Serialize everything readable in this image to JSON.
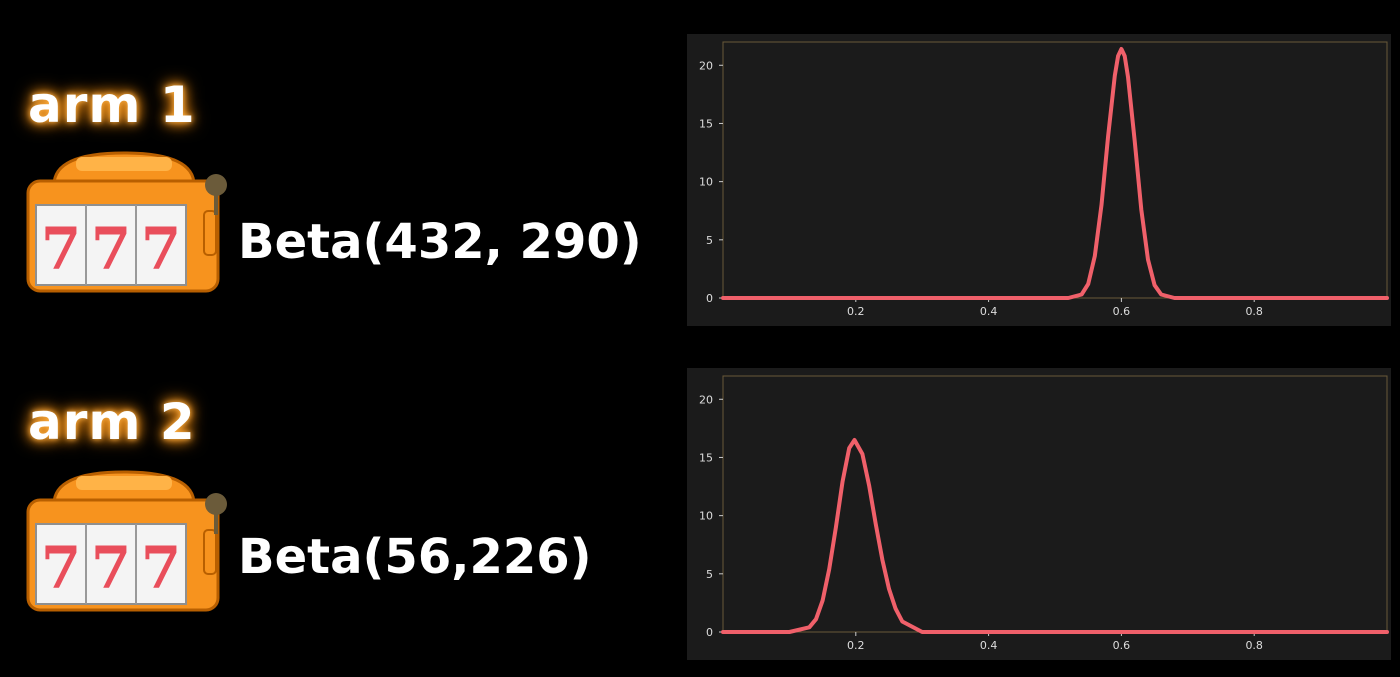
{
  "arms": [
    {
      "title": "arm 1",
      "label": "Beta(432, 290)",
      "icon": "slot-machine-icon"
    },
    {
      "title": "arm 2",
      "label": "Beta(56,226)",
      "icon": "slot-machine-icon"
    }
  ],
  "colors": {
    "background": "#000000",
    "plot_background": "#1b1b1b",
    "curve": "#f0606a",
    "glow": "#ff9a1f",
    "slot_body": "#f7931e",
    "slot_seven": "#e94e5b"
  },
  "chart_data": [
    {
      "type": "line",
      "title": "",
      "xlabel": "",
      "ylabel": "",
      "xlim": [
        0,
        1
      ],
      "ylim": [
        0,
        22
      ],
      "x_ticks": [
        0.2,
        0.4,
        0.6,
        0.8
      ],
      "x_tick_labels": [
        "0.2",
        "0.4",
        "0.6",
        "0.8"
      ],
      "y_ticks": [
        0,
        5,
        10,
        15,
        20
      ],
      "y_tick_labels": [
        "0",
        "5",
        "10",
        "15",
        "20"
      ],
      "grid": false,
      "series": [
        {
          "x": [
            0.0,
            0.52,
            0.54,
            0.55,
            0.56,
            0.57,
            0.58,
            0.59,
            0.595,
            0.6,
            0.605,
            0.61,
            0.62,
            0.63,
            0.64,
            0.65,
            0.66,
            0.68,
            1.0
          ],
          "y": [
            0,
            0,
            0.3,
            1.2,
            3.6,
            8.0,
            13.9,
            19.1,
            20.8,
            21.4,
            20.8,
            19.0,
            13.5,
            7.6,
            3.3,
            1.1,
            0.3,
            0,
            0
          ]
        }
      ]
    },
    {
      "type": "line",
      "title": "",
      "xlabel": "",
      "ylabel": "",
      "xlim": [
        0,
        1
      ],
      "ylim": [
        0,
        22
      ],
      "x_ticks": [
        0.2,
        0.4,
        0.6,
        0.8
      ],
      "x_tick_labels": [
        "0.2",
        "0.4",
        "0.6",
        "0.8"
      ],
      "y_ticks": [
        0,
        5,
        10,
        15,
        20
      ],
      "y_tick_labels": [
        "0",
        "5",
        "10",
        "15",
        "20"
      ],
      "grid": false,
      "series": [
        {
          "x": [
            0.0,
            0.1,
            0.13,
            0.14,
            0.15,
            0.16,
            0.17,
            0.18,
            0.19,
            0.198,
            0.21,
            0.22,
            0.23,
            0.24,
            0.25,
            0.26,
            0.27,
            0.3,
            1.0
          ],
          "y": [
            0,
            0,
            0.4,
            1.1,
            2.7,
            5.4,
            9.0,
            12.9,
            15.8,
            16.5,
            15.3,
            12.6,
            9.3,
            6.2,
            3.7,
            2.0,
            0.9,
            0,
            0
          ]
        }
      ]
    }
  ]
}
